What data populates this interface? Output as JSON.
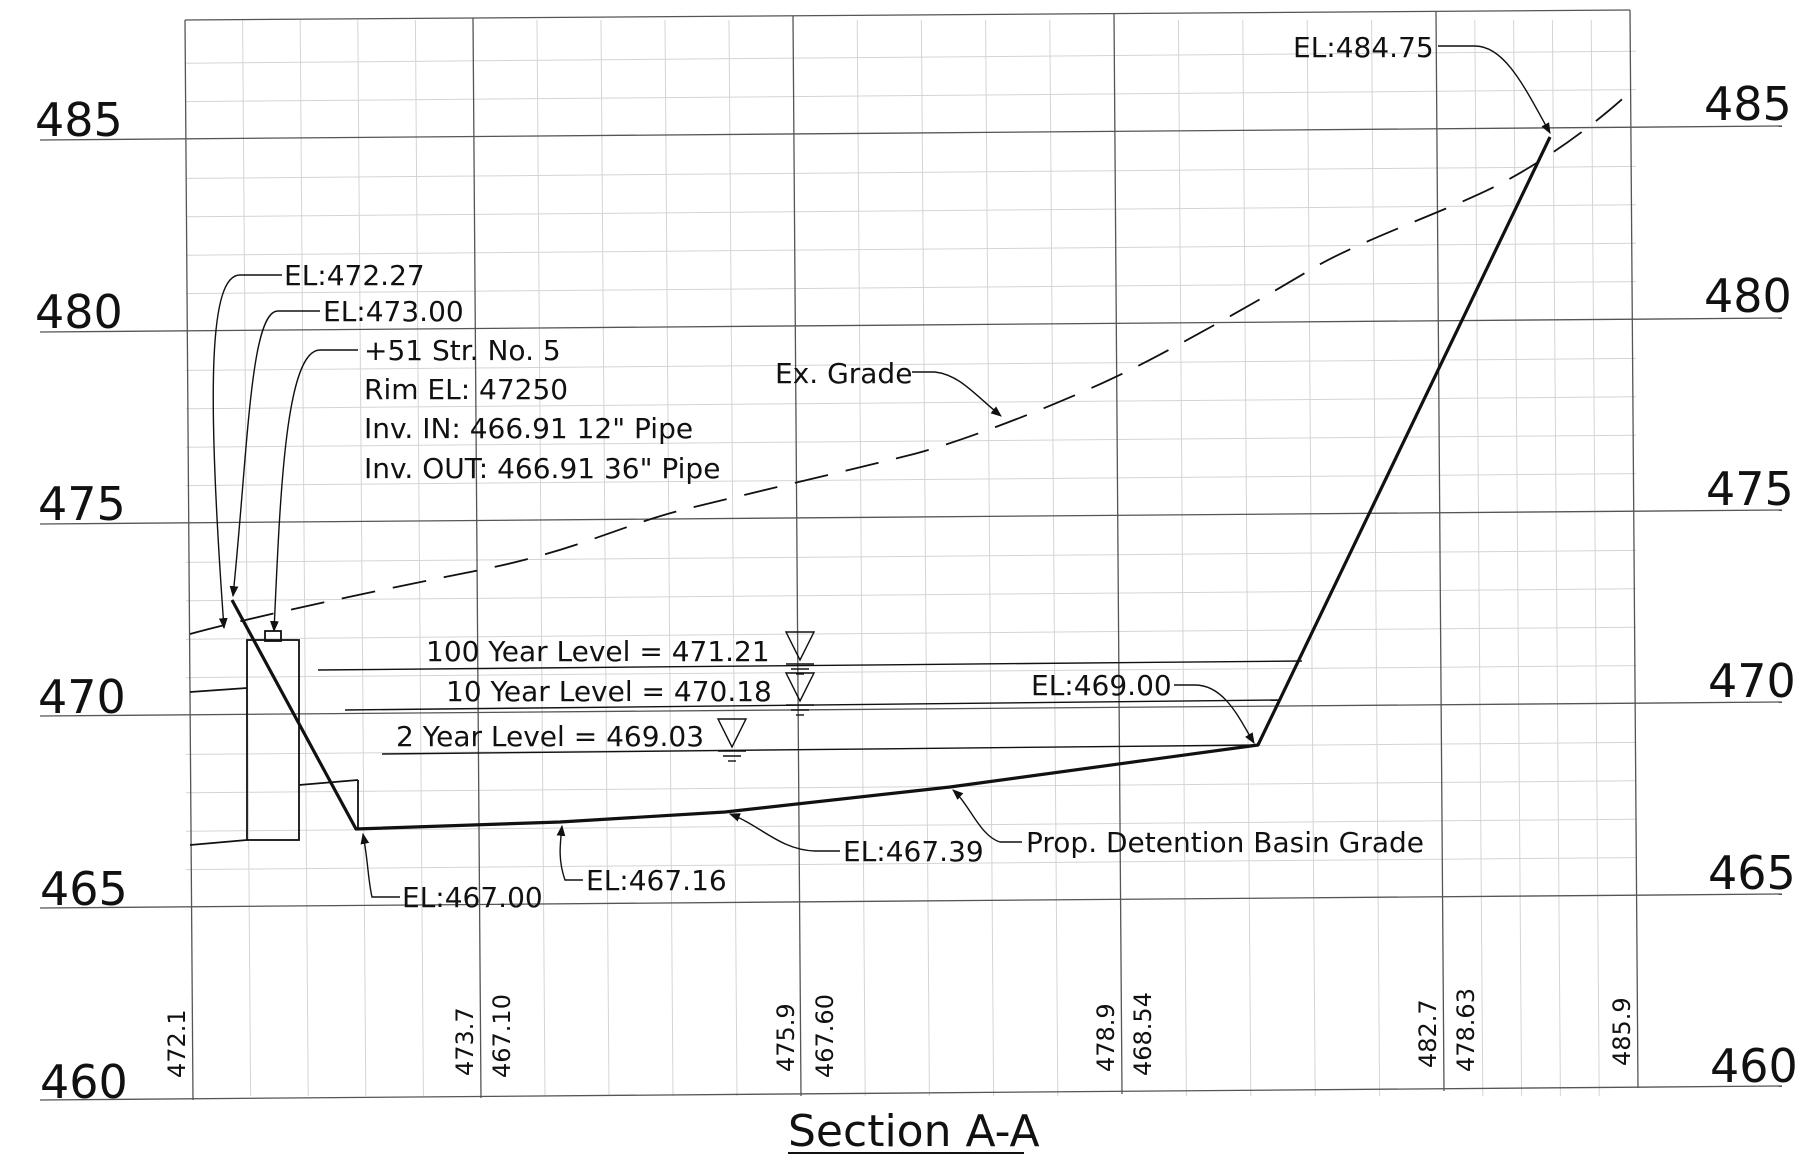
{
  "title": "Section A-A",
  "elevations_left": [
    "485",
    "480",
    "475",
    "470",
    "465",
    "460"
  ],
  "elevations_right": [
    "485",
    "480",
    "475",
    "470",
    "465",
    "460"
  ],
  "stations": {
    "s1": "472.1",
    "s2": "473.7",
    "s3": "467.10",
    "s4": "475.9",
    "s5": "467.60",
    "s6": "478.9",
    "s7": "468.54",
    "s8": "482.7",
    "s9": "478.63",
    "s10": "485.9"
  },
  "labels": {
    "el_48475": "EL:484.75",
    "el_47227": "EL:472.27",
    "el_47300": "EL:473.00",
    "str_line1": "+51 Str. No. 5",
    "str_line2": "Rim EL: 47250",
    "str_line3": "Inv. IN: 466.91 12\" Pipe",
    "str_line4": "Inv. OUT: 466.91 36\" Pipe",
    "ex_grade": "Ex. Grade",
    "level_100": "100 Year Level = 471.21",
    "level_10": "10 Year Level = 470.18",
    "level_2": "2 Year Level = 469.03",
    "el_46900": "EL:469.00",
    "el_46700": "EL:467.00",
    "el_46716": "EL:467.16",
    "el_46739": "EL:467.39",
    "prop_grade": "Prop. Detention Basin Grade"
  },
  "colors": {
    "ink": "#111111",
    "grid_major": "#555555",
    "grid_minor": "#d4d4d4"
  }
}
